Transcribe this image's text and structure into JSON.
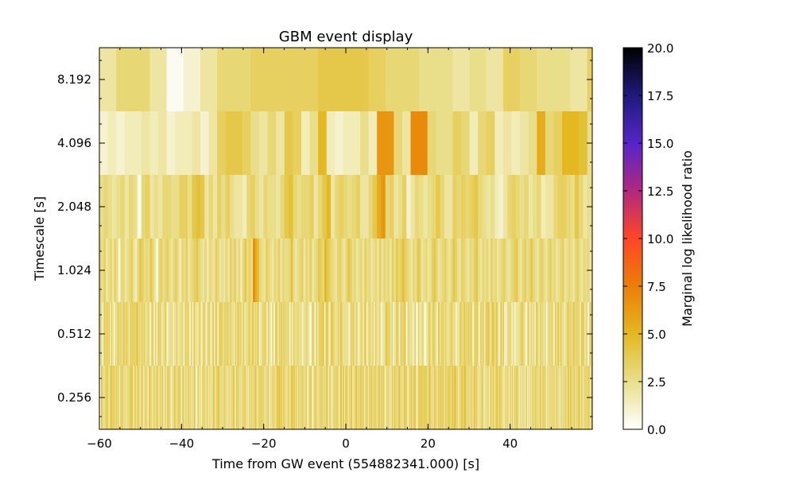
{
  "chart_data": {
    "type": "heatmap",
    "title": "GBM event display",
    "xlabel": "Time from GW event (554882341.000) [s]",
    "ylabel": "Timescale [s]",
    "xlim": [
      -60,
      60
    ],
    "x_ticks": [
      -60,
      -40,
      -20,
      0,
      20,
      40
    ],
    "x_tick_labels": [
      "−60",
      "−40",
      "−20",
      "0",
      "20",
      "40"
    ],
    "x_data_end": 60,
    "rows": [
      {
        "timescale": 8.192,
        "label": "8.192",
        "step": 4.096,
        "values": [
          2,
          3,
          3,
          2,
          0.3,
          1,
          2,
          3,
          3,
          3.5,
          3.5,
          3.5,
          3.5,
          4,
          4,
          4,
          3.5,
          3,
          3,
          2.5,
          2.5,
          2,
          2.5,
          2,
          3.5,
          3,
          2.5,
          2.5,
          2,
          3.5,
          2.5,
          2,
          3,
          3,
          3,
          4,
          3.5,
          5.5,
          5.5,
          6,
          6,
          5,
          3.5,
          2.5,
          3,
          0.5,
          1.5,
          1.5,
          2.5,
          3,
          3.5,
          3.5,
          4,
          4,
          2.5,
          2.5,
          1,
          1,
          2,
          1.5
        ]
      },
      {
        "timescale": 4.096,
        "label": "4.096",
        "step": 2.048,
        "values": [
          1,
          1.5,
          1,
          1.5,
          1.5,
          2,
          1.5,
          2,
          1,
          1.5,
          1.5,
          2,
          1,
          2,
          3.5,
          4,
          4,
          3.5,
          2.5,
          2,
          3,
          2,
          4,
          3.5,
          1.5,
          2.5,
          5,
          1.5,
          1,
          1.5,
          1.5,
          2.5,
          1.5,
          6.5,
          6.5,
          3,
          2,
          7,
          7,
          3,
          2.5,
          2.5,
          3.5,
          3,
          1.5,
          3,
          3.5,
          1.5,
          2,
          1.5,
          2,
          2.5,
          5.5,
          3,
          3.5,
          5,
          5,
          4.5,
          2.5,
          4.5,
          3,
          3.5,
          3.5,
          2.5,
          2.5,
          2,
          0.5,
          1,
          1,
          2,
          1.5,
          1.5,
          1.5,
          1,
          1,
          0.5
        ]
      },
      {
        "timescale": 2.048,
        "label": "2.048",
        "step": 1.024,
        "values": [
          2.5,
          3,
          2.5,
          2,
          2.5,
          3,
          2,
          3,
          2.5,
          0.5,
          3,
          3.5,
          2,
          2.5,
          2,
          3,
          3,
          2.5,
          2.5,
          3.5,
          3.5,
          2.5,
          4,
          4.5,
          4,
          2,
          3,
          2,
          3.5,
          2.5,
          3.5,
          2.5,
          2,
          2,
          1.5,
          3,
          3.5,
          2.5,
          2,
          3,
          2.5,
          2.5,
          2,
          3,
          4,
          4.5,
          3,
          2.5,
          3,
          3,
          3.5,
          2,
          3,
          4,
          5,
          2,
          3,
          3.5,
          3,
          2.5,
          3,
          3.5,
          2,
          2,
          3,
          4,
          5.5,
          6.5,
          3,
          3.5,
          2,
          2.5,
          3.5,
          1,
          2,
          3,
          2.5,
          2,
          2.5,
          3,
          4,
          3,
          2,
          2,
          3.5,
          3,
          3.5,
          3,
          3.5,
          4,
          3,
          2.5,
          2,
          2.5,
          1.5,
          1,
          2,
          3,
          3.5,
          3,
          2.5,
          3,
          2,
          2.5,
          3,
          1.5,
          2,
          2,
          3,
          3.5,
          3.5,
          3,
          2.5,
          4,
          3,
          2,
          2.5,
          3,
          2,
          3,
          3.5,
          2.5
        ]
      },
      {
        "timescale": 1.024,
        "label": "1.024",
        "step": 0.512,
        "values": [
          3,
          2.5,
          3.5,
          2,
          2.5,
          3,
          2,
          3.5,
          2.5,
          0.5,
          3,
          3,
          2,
          2.5,
          3,
          3.5,
          2,
          1.5,
          3,
          4,
          3.5,
          2.5,
          3,
          2.5,
          4,
          3,
          2,
          0.5,
          3,
          3.5,
          2.5,
          3,
          3.5,
          2.5,
          2,
          3,
          3.5,
          2.5,
          1.5,
          3,
          2.5,
          3.5,
          2,
          2.5,
          3,
          3.5,
          4,
          3,
          2.5,
          2,
          3,
          1.5,
          3,
          2.5,
          2,
          3.5,
          3,
          2,
          2.5,
          2,
          3,
          2,
          3.5,
          2.5,
          3.5,
          2,
          3,
          1.5,
          3,
          4,
          2.5,
          3.5,
          2.5,
          7,
          5.5,
          4.5,
          3,
          2.5,
          2,
          3.5,
          3,
          2.5,
          2,
          3,
          2.5,
          3.5,
          2,
          3,
          2.5,
          2.5,
          3,
          4.5,
          2.5,
          2,
          2.5,
          3,
          3.5,
          2,
          3,
          2.5,
          3.5,
          2,
          2.5,
          3,
          4,
          3.5,
          3,
          5,
          4,
          3.5,
          3,
          2.5,
          2,
          3,
          3.5,
          2.5,
          2,
          3,
          4,
          3.5,
          2.5,
          3,
          2,
          2.5,
          3,
          2,
          3.5,
          2.5,
          3,
          2,
          2.5,
          3,
          2,
          3.5,
          2,
          3,
          2.5,
          3,
          2,
          3.5,
          2.5,
          4,
          3,
          3.5,
          4.5,
          3.5,
          3,
          2.5,
          2,
          3,
          2.5,
          4,
          3.5,
          2,
          2.5,
          3,
          2,
          2.5,
          3.5,
          4,
          3,
          2,
          2.5,
          3,
          3.5,
          2.5,
          2,
          3,
          4,
          3.5,
          2.5,
          2,
          3.5,
          3,
          2.5,
          2,
          3,
          2.5,
          3.5,
          4,
          2.5,
          2,
          3,
          2.5,
          3,
          2,
          3.5,
          2.5,
          3,
          2,
          2.5,
          3,
          3.5,
          2.5,
          2,
          2.5,
          3,
          3.5,
          4,
          2.5,
          2,
          3,
          3.5,
          2.5,
          3,
          4,
          3,
          2.5,
          2,
          3,
          3.5,
          2.5,
          2,
          3,
          3.5,
          2.5,
          3,
          2,
          2.5,
          3,
          3.5,
          2,
          2.5,
          3,
          2.5,
          2,
          3,
          3.5,
          2.5,
          2,
          3,
          2.5,
          3,
          2
        ]
      },
      {
        "timescale": 0.512,
        "label": "0.512",
        "step": 0.256,
        "seed": 7,
        "base": 3.0,
        "spread": 1.2
      },
      {
        "timescale": 0.256,
        "label": "0.256",
        "step": 0.128,
        "seed": 19,
        "base": 3.2,
        "spread": 1.4
      }
    ],
    "colorbar": {
      "label": "Marginal log likelihood ratio",
      "vmin": 0,
      "vmax": 20,
      "ticks": [
        0,
        2.5,
        5,
        7.5,
        10,
        12.5,
        15,
        17.5,
        20
      ],
      "tick_labels": [
        "0.0",
        "2.5",
        "5.0",
        "7.5",
        "10.0",
        "12.5",
        "15.0",
        "17.5",
        "20.0"
      ],
      "colormap_stops": [
        {
          "v": 0.0,
          "color": "#ffffff"
        },
        {
          "v": 0.125,
          "color": "#e9df8a"
        },
        {
          "v": 0.25,
          "color": "#e3b820"
        },
        {
          "v": 0.375,
          "color": "#eb7e06"
        },
        {
          "v": 0.5,
          "color": "#ff4626"
        },
        {
          "v": 0.625,
          "color": "#b0297e"
        },
        {
          "v": 0.75,
          "color": "#5525c8"
        },
        {
          "v": 0.875,
          "color": "#1f1a7a"
        },
        {
          "v": 1.0,
          "color": "#000000"
        }
      ]
    }
  }
}
